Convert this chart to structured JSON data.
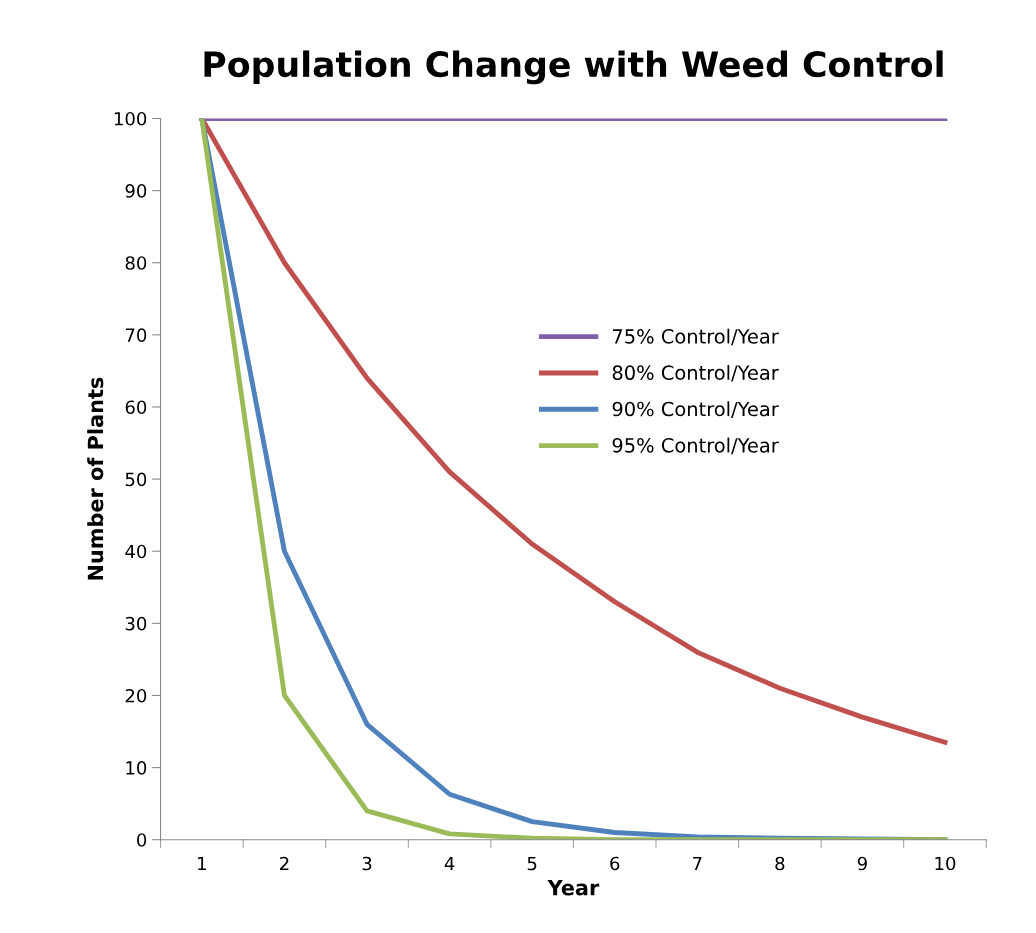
{
  "chart_data": {
    "type": "line",
    "title": "Population Change with Weed Control",
    "xlabel": "Year",
    "ylabel": "Number of Plants",
    "categories": [
      "1",
      "2",
      "3",
      "4",
      "5",
      "6",
      "7",
      "8",
      "9",
      "10"
    ],
    "series": [
      {
        "name": "75% Control/Year",
        "color": "#7f60a8",
        "values": [
          100,
          100,
          100,
          100,
          100,
          100,
          100,
          100,
          100,
          100
        ]
      },
      {
        "name": "80% Control/Year",
        "color": "#c0504d",
        "values": [
          100,
          80,
          64,
          51,
          41,
          33,
          26,
          21,
          17,
          13.5
        ]
      },
      {
        "name": "90% Control/Year",
        "color": "#4f81bd",
        "values": [
          100,
          40,
          16,
          6.3,
          2.5,
          1,
          0.4,
          0.2,
          0.1,
          0
        ]
      },
      {
        "name": "95% Control/Year",
        "color": "#9bbb59",
        "values": [
          100,
          20,
          4,
          0.8,
          0.2,
          0,
          0,
          0,
          0,
          0
        ]
      }
    ],
    "ylim": [
      0,
      100
    ],
    "yticks": [
      0,
      10,
      20,
      30,
      40,
      50,
      60,
      70,
      80,
      90,
      100
    ],
    "grid": false,
    "legend": "center",
    "marker": "none",
    "line_style": "solid"
  }
}
